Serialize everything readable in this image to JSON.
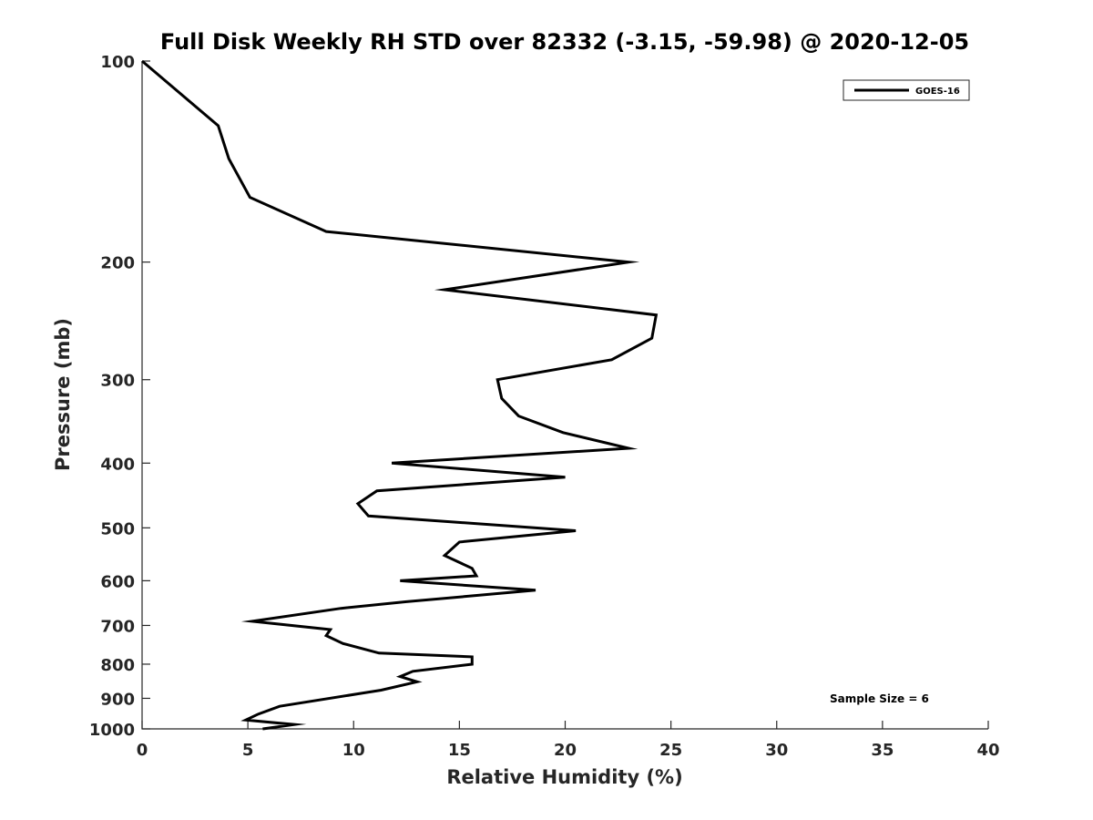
{
  "chart_data": {
    "type": "line",
    "title": "Full Disk Weekly RH STD over 82332 (-3.15, -59.98) @ 2020-12-05",
    "xlabel": "Relative Humidity (%)",
    "ylabel": "Pressure (mb)",
    "xlim": [
      0,
      40
    ],
    "ylim": [
      100,
      1000
    ],
    "yscale": "log",
    "yreversed": true,
    "grid": false,
    "x_ticks": [
      0,
      5,
      10,
      15,
      20,
      25,
      30,
      35,
      40
    ],
    "x_tick_labels": [
      "0",
      "5",
      "10",
      "15",
      "20",
      "25",
      "30",
      "35",
      "40"
    ],
    "y_ticks": [
      100,
      200,
      300,
      400,
      500,
      600,
      700,
      800,
      900,
      1000
    ],
    "y_tick_labels": [
      "100",
      "200",
      "300",
      "400",
      "500",
      "600",
      "700",
      "800",
      "900",
      "1000"
    ],
    "legend": {
      "position": "top-right",
      "entries": [
        "GOES-16"
      ]
    },
    "annotation": "Sample Size = 6",
    "series": [
      {
        "name": "GOES-16",
        "color": "#000000",
        "points": [
          {
            "x": 0.0,
            "p": 100
          },
          {
            "x": 3.6,
            "p": 125
          },
          {
            "x": 4.1,
            "p": 140
          },
          {
            "x": 5.1,
            "p": 160
          },
          {
            "x": 8.7,
            "p": 180
          },
          {
            "x": 23.0,
            "p": 200
          },
          {
            "x": 14.3,
            "p": 220
          },
          {
            "x": 24.3,
            "p": 240
          },
          {
            "x": 24.1,
            "p": 260
          },
          {
            "x": 22.2,
            "p": 280
          },
          {
            "x": 16.8,
            "p": 300
          },
          {
            "x": 17.0,
            "p": 320
          },
          {
            "x": 17.8,
            "p": 340
          },
          {
            "x": 19.9,
            "p": 360
          },
          {
            "x": 23.0,
            "p": 380
          },
          {
            "x": 11.8,
            "p": 400
          },
          {
            "x": 20.0,
            "p": 420
          },
          {
            "x": 11.1,
            "p": 440
          },
          {
            "x": 10.2,
            "p": 460
          },
          {
            "x": 10.7,
            "p": 480
          },
          {
            "x": 20.5,
            "p": 505
          },
          {
            "x": 15.0,
            "p": 525
          },
          {
            "x": 14.3,
            "p": 550
          },
          {
            "x": 15.6,
            "p": 575
          },
          {
            "x": 15.8,
            "p": 590
          },
          {
            "x": 12.2,
            "p": 600
          },
          {
            "x": 18.6,
            "p": 620
          },
          {
            "x": 12.5,
            "p": 645
          },
          {
            "x": 9.4,
            "p": 660
          },
          {
            "x": 5.2,
            "p": 690
          },
          {
            "x": 8.9,
            "p": 710
          },
          {
            "x": 8.7,
            "p": 725
          },
          {
            "x": 9.5,
            "p": 745
          },
          {
            "x": 11.2,
            "p": 770
          },
          {
            "x": 15.6,
            "p": 780
          },
          {
            "x": 15.6,
            "p": 800
          },
          {
            "x": 12.8,
            "p": 820
          },
          {
            "x": 12.2,
            "p": 835
          },
          {
            "x": 13.0,
            "p": 850
          },
          {
            "x": 11.3,
            "p": 875
          },
          {
            "x": 6.5,
            "p": 925
          },
          {
            "x": 5.5,
            "p": 950
          },
          {
            "x": 4.9,
            "p": 970
          },
          {
            "x": 7.2,
            "p": 985
          },
          {
            "x": 5.7,
            "p": 1000
          }
        ]
      }
    ]
  }
}
